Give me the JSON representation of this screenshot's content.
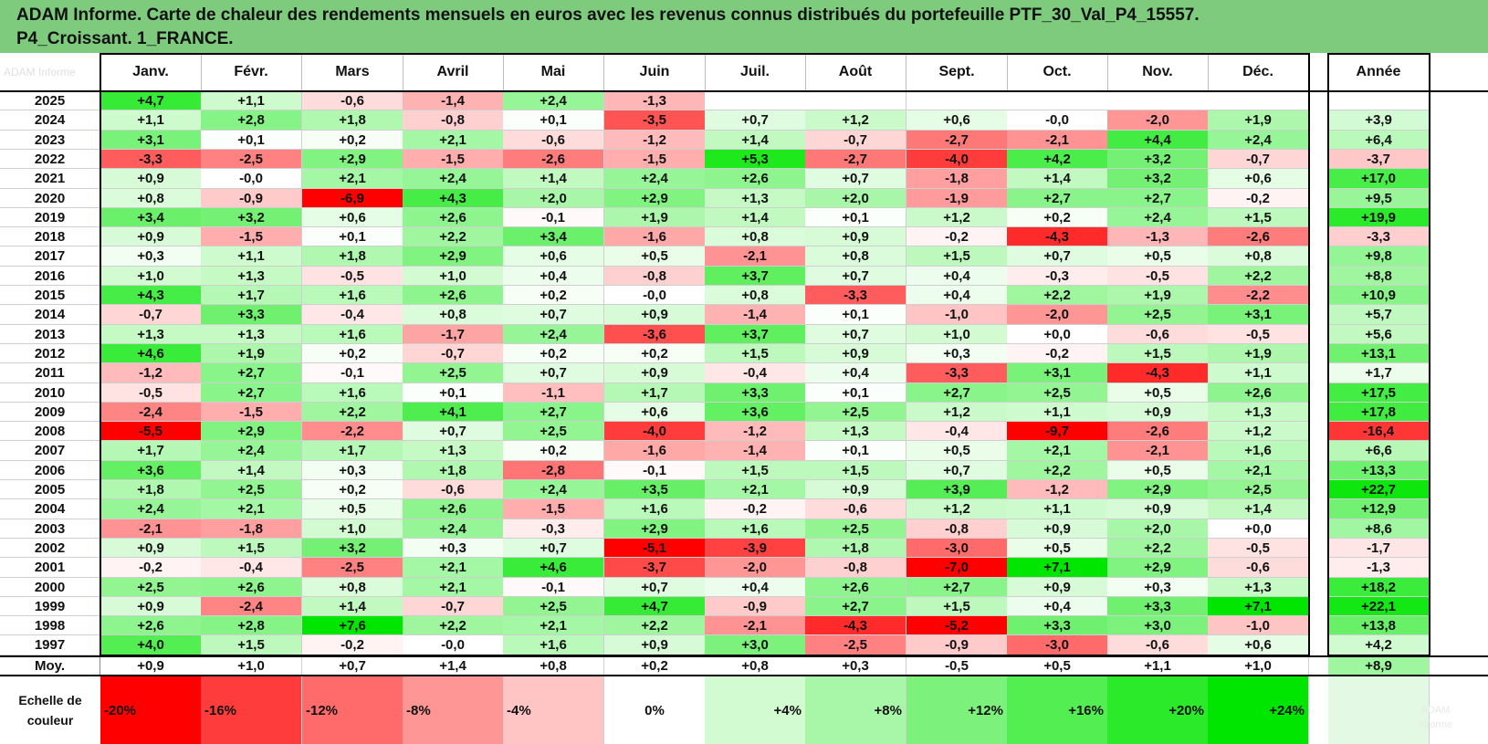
{
  "title": {
    "line1": "ADAM Informe. Carte de chaleur des rendements mensuels en euros avec les revenus connus distribués du portefeuille PTF_30_Val_P4_15557.",
    "line2": "P4_Croissant. 1_FRANCE."
  },
  "corner_watermark": "ADAM Informe",
  "bottom_watermark": "ADAM\nInforme",
  "chart_data": {
    "type": "heatmap",
    "title": "ADAM Informe. Carte de chaleur des rendements mensuels en euros avec les revenus connus distribués du portefeuille PTF_30_Val_P4_15557. P4_Croissant. 1_FRANCE.",
    "columns": [
      "Janv.",
      "Févr.",
      "Mars",
      "Avril",
      "Mai",
      "Juin",
      "Juil.",
      "Août",
      "Sept.",
      "Oct.",
      "Nov.",
      "Déc."
    ],
    "annual_header": "Année",
    "rows": [
      {
        "year": "2025",
        "values": [
          "+4,7",
          "+1,1",
          "-0,6",
          "-1,4",
          "+2,4",
          "-1,3",
          "",
          "",
          "",
          "",
          "",
          ""
        ],
        "annual": ""
      },
      {
        "year": "2024",
        "values": [
          "+1,1",
          "+2,8",
          "+1,8",
          "-0,8",
          "+0,1",
          "-3,5",
          "+0,7",
          "+1,2",
          "+0,6",
          "-0,0",
          "-2,0",
          "+1,9"
        ],
        "annual": "+3,9"
      },
      {
        "year": "2023",
        "values": [
          "+3,1",
          "+0,1",
          "+0,2",
          "+2,1",
          "-0,6",
          "-1,2",
          "+1,4",
          "-0,7",
          "-2,7",
          "-2,1",
          "+4,4",
          "+2,4"
        ],
        "annual": "+6,4"
      },
      {
        "year": "2022",
        "values": [
          "-3,3",
          "-2,5",
          "+2,9",
          "-1,5",
          "-2,6",
          "-1,5",
          "+5,3",
          "-2,7",
          "-4,0",
          "+4,2",
          "+3,2",
          "-0,7"
        ],
        "annual": "-3,7"
      },
      {
        "year": "2021",
        "values": [
          "+0,9",
          "-0,0",
          "+2,1",
          "+2,4",
          "+1,4",
          "+2,4",
          "+2,6",
          "+0,7",
          "-1,8",
          "+1,4",
          "+3,2",
          "+0,6"
        ],
        "annual": "+17,0"
      },
      {
        "year": "2020",
        "values": [
          "+0,8",
          "-0,9",
          "-6,9",
          "+4,3",
          "+2,0",
          "+2,9",
          "+1,3",
          "+2,0",
          "-1,9",
          "+2,7",
          "+2,7",
          "-0,2"
        ],
        "annual": "+9,5"
      },
      {
        "year": "2019",
        "values": [
          "+3,4",
          "+3,2",
          "+0,6",
          "+2,6",
          "-0,1",
          "+1,9",
          "+1,4",
          "+0,1",
          "+1,2",
          "+0,2",
          "+2,4",
          "+1,5"
        ],
        "annual": "+19,9"
      },
      {
        "year": "2018",
        "values": [
          "+0,9",
          "-1,5",
          "+0,1",
          "+2,2",
          "+3,4",
          "-1,6",
          "+0,8",
          "+0,9",
          "-0,2",
          "-4,3",
          "-1,3",
          "-2,6"
        ],
        "annual": "-3,3"
      },
      {
        "year": "2017",
        "values": [
          "+0,3",
          "+1,1",
          "+1,8",
          "+2,9",
          "+0,6",
          "+0,5",
          "-2,1",
          "+0,8",
          "+1,5",
          "+0,7",
          "+0,5",
          "+0,8"
        ],
        "annual": "+9,8"
      },
      {
        "year": "2016",
        "values": [
          "+1,0",
          "+1,3",
          "-0,5",
          "+1,0",
          "+0,4",
          "-0,8",
          "+3,7",
          "+0,7",
          "+0,4",
          "-0,3",
          "-0,5",
          "+2,2"
        ],
        "annual": "+8,8"
      },
      {
        "year": "2015",
        "values": [
          "+4,3",
          "+1,7",
          "+1,6",
          "+2,6",
          "+0,2",
          "-0,0",
          "+0,8",
          "-3,3",
          "+0,4",
          "+2,2",
          "+1,9",
          "-2,2"
        ],
        "annual": "+10,9"
      },
      {
        "year": "2014",
        "values": [
          "-0,7",
          "+3,3",
          "-0,4",
          "+0,8",
          "+0,7",
          "+0,9",
          "-1,4",
          "+0,1",
          "-1,0",
          "-2,0",
          "+2,5",
          "+3,1"
        ],
        "annual": "+5,7"
      },
      {
        "year": "2013",
        "values": [
          "+1,3",
          "+1,3",
          "+1,6",
          "-1,7",
          "+2,4",
          "-3,6",
          "+3,7",
          "+0,7",
          "+1,0",
          "+0,0",
          "-0,6",
          "-0,5"
        ],
        "annual": "+5,6"
      },
      {
        "year": "2012",
        "values": [
          "+4,6",
          "+1,9",
          "+0,2",
          "-0,7",
          "+0,2",
          "+0,2",
          "+1,5",
          "+0,9",
          "+0,3",
          "-0,2",
          "+1,5",
          "+1,9"
        ],
        "annual": "+13,1"
      },
      {
        "year": "2011",
        "values": [
          "-1,2",
          "+2,7",
          "-0,1",
          "+2,5",
          "+0,7",
          "+0,9",
          "-0,4",
          "+0,4",
          "-3,3",
          "+3,1",
          "-4,3",
          "+1,1"
        ],
        "annual": "+1,7"
      },
      {
        "year": "2010",
        "values": [
          "-0,5",
          "+2,7",
          "+1,6",
          "+0,1",
          "-1,1",
          "+1,7",
          "+3,3",
          "+0,1",
          "+2,7",
          "+2,5",
          "+0,5",
          "+2,6"
        ],
        "annual": "+17,5"
      },
      {
        "year": "2009",
        "values": [
          "-2,4",
          "-1,5",
          "+2,2",
          "+4,1",
          "+2,7",
          "+0,6",
          "+3,6",
          "+2,5",
          "+1,2",
          "+1,1",
          "+0,9",
          "+1,3"
        ],
        "annual": "+17,8"
      },
      {
        "year": "2008",
        "values": [
          "-5,5",
          "+2,9",
          "-2,2",
          "+0,7",
          "+2,5",
          "-4,0",
          "-1,2",
          "+1,3",
          "-0,4",
          "-9,7",
          "-2,6",
          "+1,2"
        ],
        "annual": "-16,4"
      },
      {
        "year": "2007",
        "values": [
          "+1,7",
          "+2,4",
          "+1,7",
          "+1,3",
          "+0,2",
          "-1,6",
          "-1,4",
          "+0,1",
          "+0,5",
          "+2,1",
          "-2,1",
          "+1,6"
        ],
        "annual": "+6,6"
      },
      {
        "year": "2006",
        "values": [
          "+3,6",
          "+1,4",
          "+0,3",
          "+1,8",
          "-2,8",
          "-0,1",
          "+1,5",
          "+1,5",
          "+0,7",
          "+2,2",
          "+0,5",
          "+2,1"
        ],
        "annual": "+13,3"
      },
      {
        "year": "2005",
        "values": [
          "+1,8",
          "+2,5",
          "+0,2",
          "-0,6",
          "+2,4",
          "+3,5",
          "+2,1",
          "+0,9",
          "+3,9",
          "-1,2",
          "+2,9",
          "+2,5"
        ],
        "annual": "+22,7"
      },
      {
        "year": "2004",
        "values": [
          "+2,4",
          "+2,1",
          "+0,5",
          "+2,6",
          "-1,5",
          "+1,6",
          "-0,2",
          "-0,6",
          "+1,2",
          "+1,1",
          "+0,9",
          "+1,4"
        ],
        "annual": "+12,9"
      },
      {
        "year": "2003",
        "values": [
          "-2,1",
          "-1,8",
          "+1,0",
          "+2,4",
          "-0,3",
          "+2,9",
          "+1,6",
          "+2,5",
          "-0,8",
          "+0,9",
          "+2,0",
          "+0,0"
        ],
        "annual": "+8,6"
      },
      {
        "year": "2002",
        "values": [
          "+0,9",
          "+1,5",
          "+3,2",
          "+0,3",
          "+0,7",
          "-5,1",
          "-3,9",
          "+1,8",
          "-3,0",
          "+0,5",
          "+2,2",
          "-0,5"
        ],
        "annual": "-1,7"
      },
      {
        "year": "2001",
        "values": [
          "-0,2",
          "-0,4",
          "-2,5",
          "+2,1",
          "+4,6",
          "-3,7",
          "-2,0",
          "-0,8",
          "-7,0",
          "+7,1",
          "+2,9",
          "-0,6"
        ],
        "annual": "-1,3"
      },
      {
        "year": "2000",
        "values": [
          "+2,5",
          "+2,6",
          "+0,8",
          "+2,1",
          "-0,1",
          "+0,7",
          "+0,4",
          "+2,6",
          "+2,7",
          "+0,9",
          "+0,3",
          "+1,3"
        ],
        "annual": "+18,2"
      },
      {
        "year": "1999",
        "values": [
          "+0,9",
          "-2,4",
          "+1,4",
          "-0,7",
          "+2,5",
          "+4,7",
          "-0,9",
          "+2,7",
          "+1,5",
          "+0,4",
          "+3,3",
          "+7,1"
        ],
        "annual": "+22,1"
      },
      {
        "year": "1998",
        "values": [
          "+2,6",
          "+2,8",
          "+7,6",
          "+2,2",
          "+2,1",
          "+2,2",
          "-2,1",
          "-4,3",
          "-5,2",
          "+3,3",
          "+3,0",
          "-1,0"
        ],
        "annual": "+13,8"
      },
      {
        "year": "1997",
        "values": [
          "+4,0",
          "+1,5",
          "-0,2",
          "-0,0",
          "+1,6",
          "+0,9",
          "+3,0",
          "-2,5",
          "-0,9",
          "-3,0",
          "-0,6",
          "+0,6"
        ],
        "annual": "+4,2"
      }
    ],
    "average_row": {
      "label": "Moy.",
      "values": [
        "+0,9",
        "+1,0",
        "+0,7",
        "+1,4",
        "+0,8",
        "+0,2",
        "+0,8",
        "+0,3",
        "-0,5",
        "+0,5",
        "+1,1",
        "+1,0"
      ],
      "annual": "+8,9"
    },
    "color_scale": {
      "label": "Echelle de couleur",
      "stops": [
        {
          "label": "-20%",
          "value": -20,
          "color": "#ff0000"
        },
        {
          "label": "-16%",
          "value": -16,
          "color": "#ff3c3c"
        },
        {
          "label": "-12%",
          "value": -12,
          "color": "#ff6b6b"
        },
        {
          "label": "-8%",
          "value": -8,
          "color": "#ff9696"
        },
        {
          "label": "-4%",
          "value": -4,
          "color": "#ffc4c4"
        },
        {
          "label": "0%",
          "value": 0,
          "color": "#ffffff"
        },
        {
          "label": "+4%",
          "value": 4,
          "color": "#d2fbd2"
        },
        {
          "label": "+8%",
          "value": 8,
          "color": "#a8f7a8"
        },
        {
          "label": "+12%",
          "value": 12,
          "color": "#7cf27c"
        },
        {
          "label": "+16%",
          "value": 16,
          "color": "#52ee52"
        },
        {
          "label": "+20%",
          "value": 20,
          "color": "#2aea2a"
        },
        {
          "label": "+24%",
          "value": 24,
          "color": "#00e600"
        }
      ]
    },
    "colors": {
      "title_band": "#7ecb7e",
      "negative": "#ff0000",
      "positive": "#00e600",
      "neutral": "#ffffff"
    }
  }
}
